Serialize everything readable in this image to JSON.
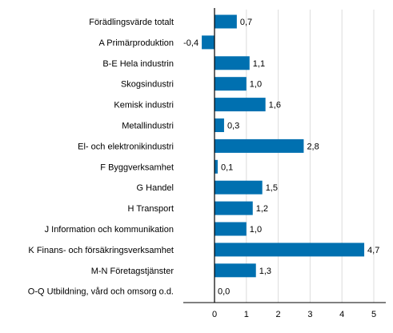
{
  "chart_data": {
    "type": "bar",
    "orientation": "horizontal",
    "title": "",
    "xlabel": "",
    "ylabel": "",
    "categories": [
      "Förädlingsvärde totalt",
      "A Primärproduktion",
      "B-E Hela industrin",
      "Skogsindustri",
      "Kemisk industri",
      "Metallindustri",
      "El- och elektronikindustri",
      "F Byggverksamhet",
      "G Handel",
      "H Transport",
      "J Information och kommunikation",
      "K Finans- och försäkringsverksamhet",
      "M-N Företagstjänster",
      "O-Q Utbildning, vård och omsorg o.d."
    ],
    "values": [
      0.7,
      -0.4,
      1.1,
      1.0,
      1.6,
      0.3,
      2.8,
      0.1,
      1.5,
      1.2,
      1.0,
      4.7,
      1.3,
      0.0
    ],
    "value_labels": [
      "0,7",
      "-0,4",
      "1,1",
      "1,0",
      "1,6",
      "0,3",
      "2,8",
      "0,1",
      "1,5",
      "1,2",
      "1,0",
      "4,7",
      "1,3",
      "0,0"
    ],
    "xlim": [
      -1,
      5.3
    ],
    "xticks": [
      0,
      1,
      2,
      3,
      4,
      5
    ],
    "xtick_labels": [
      "0",
      "1",
      "2",
      "3",
      "4",
      "5"
    ],
    "grid": true,
    "legend": "none",
    "bar_color": "#0070b0",
    "grid_color": "#dcdcdc",
    "axis_color": "#000000"
  }
}
